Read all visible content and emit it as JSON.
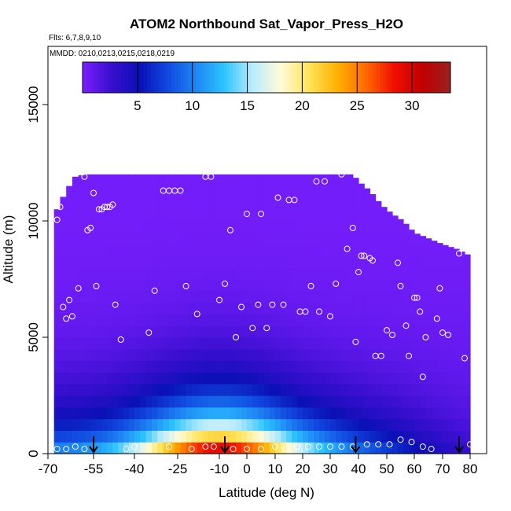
{
  "chart_data": {
    "type": "heatmap",
    "title": "ATOM2 Northbound Sat_Vapor_Press_H2O",
    "subtitle_flights": "Flts: 6,7,8,9,10",
    "subtitle_dates": "MMDD: 0210,0213,0215,0218,0219",
    "xlabel": "Latitude (deg N)",
    "ylabel": "Altitude (m)",
    "xlim": [
      -70,
      85
    ],
    "ylim": [
      0,
      17500
    ],
    "x_ticks": [
      -70,
      -55,
      -40,
      -25,
      -10,
      0,
      10,
      20,
      30,
      40,
      50,
      60,
      70,
      80
    ],
    "x_tick_labels": [
      "-70",
      "-55",
      "-40",
      "-25",
      "-10",
      "0",
      "10",
      "20",
      "30",
      "40",
      "50",
      "60",
      "70",
      "80"
    ],
    "y_ticks": [
      0,
      5000,
      10000,
      15000
    ],
    "y_tick_labels": [
      "0",
      "5000",
      "10000",
      "15000"
    ],
    "colorbar": {
      "range": [
        0,
        33.5
      ],
      "ticks": [
        5,
        10,
        15,
        20,
        25,
        30
      ],
      "tick_labels": [
        "5",
        "10",
        "15",
        "20",
        "25",
        "30"
      ],
      "colors": [
        "#7b1fff",
        "#3a0fd0",
        "#0a10b5",
        "#1048e0",
        "#1e86f5",
        "#2cc3ff",
        "#b8ecff",
        "#fffbd8",
        "#ffe45a",
        "#ffb000",
        "#ff6a00",
        "#f01000",
        "#c00000",
        "#9a2020"
      ]
    },
    "profile_top_altitude": [
      [
        -67,
        10500
      ],
      [
        -64,
        11300
      ],
      [
        -61,
        11900
      ],
      [
        -58,
        12000
      ],
      [
        -45,
        12000
      ],
      [
        -30,
        12000
      ],
      [
        -20,
        12000
      ],
      [
        -10,
        12000
      ],
      [
        0,
        12000
      ],
      [
        10,
        12000
      ],
      [
        20,
        12000
      ],
      [
        30,
        12000
      ],
      [
        38,
        12000
      ],
      [
        40,
        11700
      ],
      [
        44,
        11300
      ],
      [
        48,
        10700
      ],
      [
        52,
        10300
      ],
      [
        56,
        10000
      ],
      [
        60,
        9500
      ],
      [
        64,
        9300
      ],
      [
        70,
        9000
      ],
      [
        75,
        8800
      ],
      [
        80,
        8500
      ]
    ],
    "sample_points": [
      [
        -67,
        200
      ],
      [
        -64,
        200
      ],
      [
        -61,
        300
      ],
      [
        -67,
        10050
      ],
      [
        -66,
        10600
      ],
      [
        -65,
        6300
      ],
      [
        -64,
        5800
      ],
      [
        -63,
        6600
      ],
      [
        -62,
        5900
      ],
      [
        -60,
        7100
      ],
      [
        -58,
        11900
      ],
      [
        -57,
        9600
      ],
      [
        -56,
        9700
      ],
      [
        -55,
        11200
      ],
      [
        -54,
        7200
      ],
      [
        -53,
        10500
      ],
      [
        -52,
        10500
      ],
      [
        -51,
        10600
      ],
      [
        -50,
        10600
      ],
      [
        -49,
        10600
      ],
      [
        -48,
        10700
      ],
      [
        -47,
        6400
      ],
      [
        -45,
        4900
      ],
      [
        -43,
        200
      ],
      [
        -35,
        5200
      ],
      [
        -33,
        7000
      ],
      [
        -30,
        11300
      ],
      [
        -28,
        11300
      ],
      [
        -26,
        11300
      ],
      [
        -24,
        11300
      ],
      [
        -22,
        7200
      ],
      [
        -18,
        6000
      ],
      [
        -15,
        11900
      ],
      [
        -13,
        11900
      ],
      [
        -10,
        6600
      ],
      [
        -8,
        7300
      ],
      [
        -6,
        9600
      ],
      [
        -4,
        5000
      ],
      [
        -2,
        6300
      ],
      [
        0,
        10300
      ],
      [
        2,
        5400
      ],
      [
        4,
        6400
      ],
      [
        5,
        10300
      ],
      [
        7,
        5400
      ],
      [
        9,
        6400
      ],
      [
        11,
        11000
      ],
      [
        13,
        6400
      ],
      [
        15,
        10900
      ],
      [
        17,
        10900
      ],
      [
        19,
        6100
      ],
      [
        21,
        6100
      ],
      [
        23,
        7200
      ],
      [
        25,
        11700
      ],
      [
        26,
        6100
      ],
      [
        28,
        11700
      ],
      [
        30,
        5900
      ],
      [
        32,
        7300
      ],
      [
        34,
        12000
      ],
      [
        36,
        8800
      ],
      [
        38,
        9700
      ],
      [
        39,
        4800
      ],
      [
        40,
        7800
      ],
      [
        41,
        8500
      ],
      [
        42,
        8500
      ],
      [
        44,
        8400
      ],
      [
        45,
        8300
      ],
      [
        46,
        4200
      ],
      [
        48,
        4200
      ],
      [
        50,
        5300
      ],
      [
        52,
        5100
      ],
      [
        54,
        8200
      ],
      [
        55,
        7200
      ],
      [
        57,
        5500
      ],
      [
        58,
        4200
      ],
      [
        60,
        6700
      ],
      [
        61,
        6700
      ],
      [
        62,
        6100
      ],
      [
        63,
        3300
      ],
      [
        64,
        5000
      ],
      [
        66,
        9400
      ],
      [
        68,
        5800
      ],
      [
        69,
        7100
      ],
      [
        70,
        5200
      ],
      [
        72,
        5100
      ],
      [
        74,
        9300
      ],
      [
        76,
        8600
      ],
      [
        78,
        4100
      ],
      [
        80,
        400
      ],
      [
        -12,
        300
      ],
      [
        -5,
        200
      ],
      [
        0,
        200
      ],
      [
        5,
        200
      ],
      [
        10,
        300
      ],
      [
        14,
        200
      ],
      [
        18,
        300
      ],
      [
        22,
        300
      ],
      [
        26,
        300
      ],
      [
        30,
        300
      ],
      [
        34,
        300
      ],
      [
        38,
        300
      ],
      [
        43,
        400
      ],
      [
        47,
        400
      ],
      [
        51,
        400
      ],
      [
        55,
        600
      ],
      [
        59,
        500
      ],
      [
        63,
        300
      ],
      [
        66,
        200
      ],
      [
        -28,
        300
      ],
      [
        -20,
        200
      ],
      [
        -15,
        300
      ],
      [
        -40,
        300
      ],
      [
        -58,
        200
      ]
    ],
    "markers_latitude": [
      -55,
      -8,
      39,
      76
    ]
  }
}
